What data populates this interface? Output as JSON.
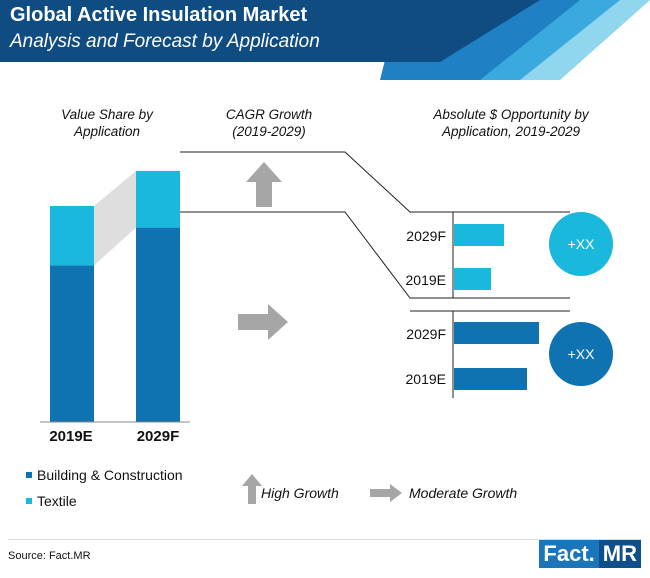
{
  "header": {
    "title": "Global Active Insulation Market",
    "subtitle": "Analysis and Forecast by Application"
  },
  "colors": {
    "building": "#0f72b1",
    "textile": "#1ab8dc",
    "arrow_gray": "#a6a6a6",
    "header_dark": "#0f4c81",
    "connector_gray": "#dadada"
  },
  "sections": {
    "value_share": "Value Share by Application",
    "cagr": "CAGR Growth (2019-2029)",
    "opportunity": "Absolute $ Opportunity by Application, 2019-2029"
  },
  "chart_data": [
    {
      "type": "bar",
      "stacked": true,
      "title": "Value Share by Application",
      "categories": [
        "2019E",
        "2029F"
      ],
      "series": [
        {
          "name": "Building & Construction",
          "values": [
            58,
            72
          ]
        },
        {
          "name": "Textile",
          "values": [
            22,
            21
          ]
        }
      ],
      "ylim": [
        0,
        100
      ],
      "legend": "bottom-left"
    },
    {
      "type": "bar",
      "orientation": "horizontal",
      "title": "Absolute $ Opportunity by Application, 2019-2029",
      "groups": [
        {
          "name": "Textile",
          "categories": [
            "2029F",
            "2019E"
          ],
          "values": [
            50,
            37
          ],
          "growth": "High Growth",
          "opportunity": "+XX"
        },
        {
          "name": "Building & Construction",
          "categories": [
            "2029F",
            "2019E"
          ],
          "values": [
            85,
            73
          ],
          "growth": "Moderate Growth",
          "opportunity": "+XX"
        }
      ]
    }
  ],
  "legend": {
    "building": "Building & Construction",
    "textile": "Textile",
    "high_growth": "High Growth",
    "moderate_growth": "Moderate Growth"
  },
  "footer": {
    "source": "Source: Fact.MR",
    "logo_left": "Fact.",
    "logo_right": "MR"
  }
}
